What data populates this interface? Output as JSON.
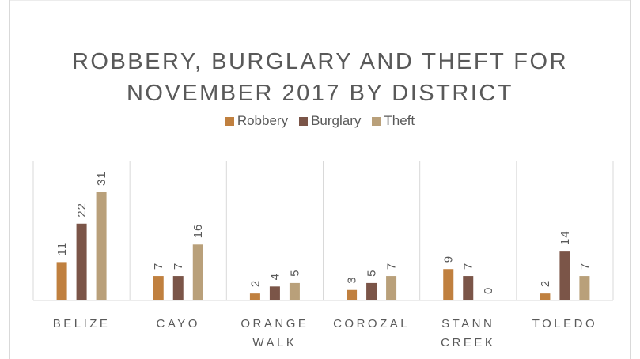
{
  "chart_data": {
    "type": "bar",
    "title": "ROBBERY, BURGLARY AND THEFT FOR NOVEMBER 2017 BY DISTRICT",
    "categories": [
      "BELIZE",
      "CAYO",
      "ORANGE WALK",
      "COROZAL",
      "STANN CREEK",
      "TOLEDO"
    ],
    "series": [
      {
        "name": "Robbery",
        "color": "#c0803f",
        "values": [
          11,
          7,
          2,
          3,
          9,
          2
        ]
      },
      {
        "name": "Burglary",
        "color": "#7b5548",
        "values": [
          22,
          7,
          4,
          5,
          7,
          14
        ]
      },
      {
        "name": "Theft",
        "color": "#b9a07a",
        "values": [
          31,
          16,
          5,
          7,
          0,
          7
        ]
      }
    ],
    "legend": "top"
  }
}
